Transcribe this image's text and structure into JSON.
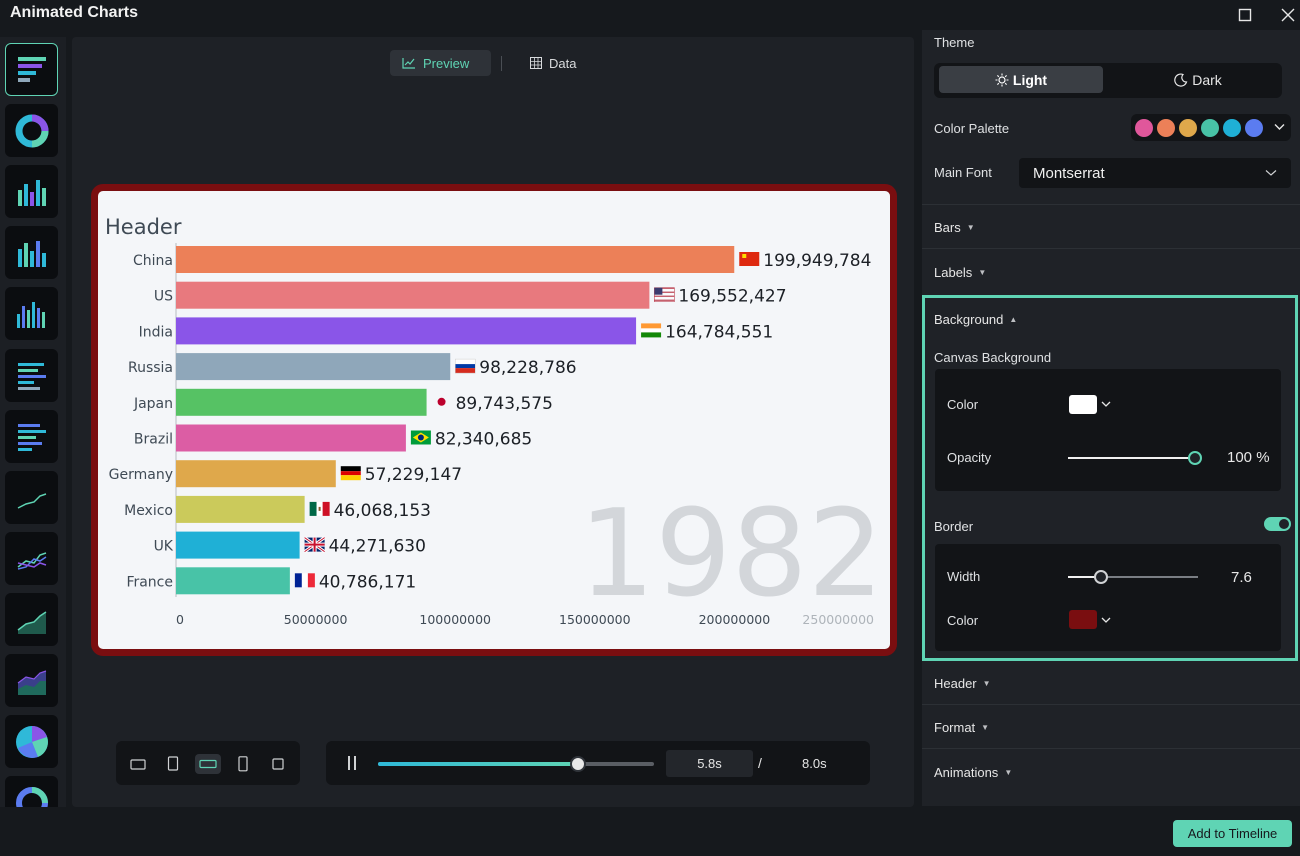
{
  "app": {
    "title": "Animated Charts"
  },
  "preview": {
    "tab_preview": "Preview",
    "tab_data": "Data"
  },
  "playback": {
    "current": "5.8s",
    "separator": "/",
    "total": "8.0s",
    "progress": 0.725
  },
  "chart_data": {
    "type": "bar",
    "orientation": "horizontal",
    "title": "Header",
    "watermark": "1982",
    "categories": [
      "China",
      "US",
      "India",
      "Russia",
      "Japan",
      "Brazil",
      "Germany",
      "Mexico",
      "UK",
      "France"
    ],
    "values": [
      199949784,
      169552427,
      164784551,
      98228786,
      89743575,
      82340685,
      57229147,
      46068153,
      44271630,
      40786171
    ],
    "value_labels": [
      "199,949,784",
      "169,552,427",
      "164,784,551",
      "98,228,786",
      "89,743,575",
      "82,340,685",
      "57,229,147",
      "46,068,153",
      "44,271,630",
      "40,786,171"
    ],
    "colors": [
      "#ec8058",
      "#e8797e",
      "#8a55e8",
      "#8fa7ba",
      "#56c264",
      "#dc5da4",
      "#dfa84b",
      "#cbca5b",
      "#1fb0d6",
      "#48c3a7"
    ],
    "flags": [
      "cn",
      "us",
      "in",
      "ru",
      "jp",
      "br",
      "de",
      "mx",
      "uk",
      "fr"
    ],
    "x_ticks": [
      "0",
      "50000000",
      "100000000",
      "150000000",
      "200000000",
      "250000000"
    ],
    "x_tick_values": [
      0,
      50000000,
      100000000,
      150000000,
      200000000,
      250000000
    ],
    "xlim": [
      0,
      250000000
    ],
    "grid": false,
    "legend": "none"
  },
  "chart_types": [
    "bar-race-icon",
    "donut-icon",
    "column-chart-icon",
    "column-chart-2-icon",
    "column-chart-3-icon",
    "horizontal-bar-icon",
    "horizontal-bar-2-icon",
    "line-chart-icon",
    "multi-line-icon",
    "area-chart-icon",
    "stacked-area-icon",
    "pie-chart-icon",
    "donut-2-icon"
  ],
  "settings": {
    "theme_label": "Theme",
    "theme_light": "Light",
    "theme_dark": "Dark",
    "palette_label": "Color Palette",
    "palette_colors": [
      "#e0579b",
      "#ec8058",
      "#dfa84b",
      "#48c3a7",
      "#1fb0d6",
      "#5b7cf0"
    ],
    "font_label": "Main Font",
    "font_value": "Montserrat",
    "bars": "Bars",
    "labels": "Labels",
    "background": "Background",
    "canvas_bg": "Canvas Background",
    "color_label": "Color",
    "canvas_color": "#ffffff",
    "opacity_label": "Opacity",
    "opacity_value": "100 %",
    "opacity_level": 1.0,
    "border_label": "Border",
    "border_enabled": true,
    "width_label": "Width",
    "width_value": "7.6",
    "border_color_label": "Color",
    "border_color": "#7a0e10",
    "header": "Header",
    "format": "Format",
    "animations": "Animations"
  },
  "footer": {
    "add_button": "Add to Timeline"
  }
}
